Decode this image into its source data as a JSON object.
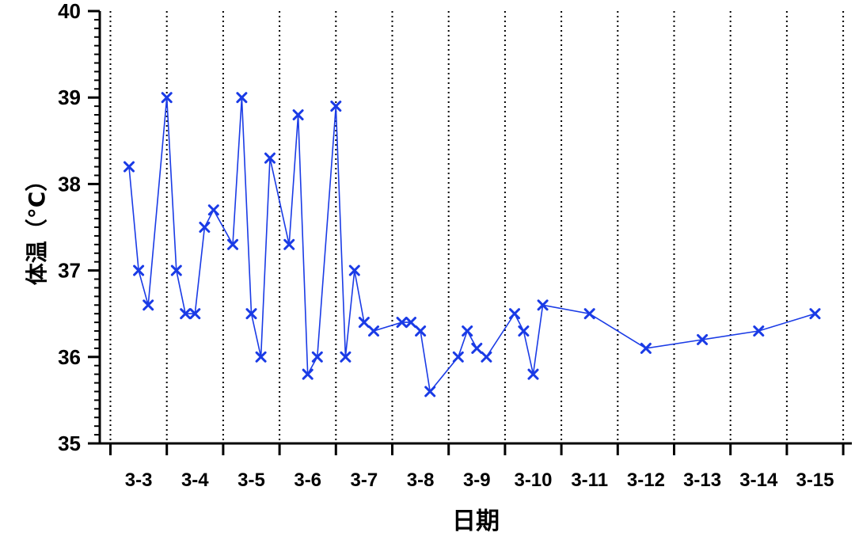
{
  "chart_data": {
    "type": "line",
    "title": "",
    "xlabel": "日期",
    "ylabel": "体温（°C）",
    "ylim": [
      35,
      40
    ],
    "yticks": [
      35,
      36,
      37,
      38,
      39,
      40
    ],
    "xlim": [
      0,
      13
    ],
    "categories": [
      "3-3",
      "3-4",
      "3-5",
      "3-6",
      "3-7",
      "3-8",
      "3-9",
      "3-10",
      "3-11",
      "3-12",
      "3-13",
      "3-14",
      "3-15"
    ],
    "grid": {
      "vertical_dotted_lines": true,
      "horizontal": false
    },
    "legend": "none",
    "series": [
      {
        "color": "#1a3be6",
        "marker": "x",
        "points": [
          [
            0.33,
            38.2
          ],
          [
            0.5,
            37.0
          ],
          [
            0.67,
            36.6
          ],
          [
            1.0,
            39.0
          ],
          [
            1.17,
            37.0
          ],
          [
            1.33,
            36.5
          ],
          [
            1.5,
            36.5
          ],
          [
            1.67,
            37.5
          ],
          [
            1.83,
            37.7
          ],
          [
            2.17,
            37.3
          ],
          [
            2.33,
            39.0
          ],
          [
            2.5,
            36.5
          ],
          [
            2.67,
            36.0
          ],
          [
            2.83,
            38.3
          ],
          [
            3.17,
            37.3
          ],
          [
            3.33,
            38.8
          ],
          [
            3.5,
            35.8
          ],
          [
            3.67,
            36.0
          ],
          [
            4.0,
            38.9
          ],
          [
            4.17,
            36.0
          ],
          [
            4.33,
            37.0
          ],
          [
            4.5,
            36.4
          ],
          [
            4.67,
            36.3
          ],
          [
            5.17,
            36.4
          ],
          [
            5.33,
            36.4
          ],
          [
            5.5,
            36.3
          ],
          [
            5.67,
            35.6
          ],
          [
            6.17,
            36.0
          ],
          [
            6.33,
            36.3
          ],
          [
            6.5,
            36.1
          ],
          [
            6.67,
            36.0
          ],
          [
            7.17,
            36.5
          ],
          [
            7.33,
            36.3
          ],
          [
            7.5,
            35.8
          ],
          [
            7.67,
            36.6
          ],
          [
            8.5,
            36.5
          ],
          [
            9.5,
            36.1
          ],
          [
            10.5,
            36.2
          ],
          [
            11.5,
            36.3
          ],
          [
            12.5,
            36.5
          ]
        ]
      }
    ]
  }
}
